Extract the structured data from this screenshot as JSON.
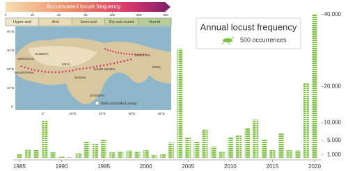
{
  "chart_data": {
    "type": "bar",
    "title": "Annual locust frequency",
    "x": [
      1985,
      1986,
      1987,
      1988,
      1989,
      1990,
      1991,
      1992,
      1993,
      1994,
      1995,
      1996,
      1997,
      1998,
      1999,
      2000,
      2001,
      2002,
      2003,
      2004,
      2005,
      2006,
      2007,
      2008,
      2009,
      2010,
      2011,
      2012,
      2013,
      2014,
      2015,
      2016,
      2017,
      2018,
      2019,
      2020
    ],
    "series": [
      {
        "name": "500 occurrences",
        "color": "#7dc242",
        "values": [
          1300,
          2600,
          2400,
          10500,
          1700,
          500,
          300,
          1500,
          4800,
          4100,
          5400,
          1700,
          2000,
          2200,
          2000,
          2300,
          1000,
          1300,
          4400,
          30500,
          5800,
          4800,
          8000,
          3300,
          2000,
          5900,
          6400,
          8500,
          10800,
          5200,
          2400,
          7000,
          2400,
          2200,
          21000,
          40000
        ]
      }
    ],
    "xlim": [
      1984.2,
      2020.8
    ],
    "xticks": [
      1985,
      1990,
      1995,
      2000,
      2005,
      2010,
      2015,
      2020
    ],
    "ylim": [
      0,
      41500
    ],
    "yticks": [
      {
        "value": 1000,
        "label": "1,000"
      },
      {
        "value": 5000,
        "label": "5,000"
      },
      {
        "value": 10000,
        "label": "10,000"
      },
      {
        "value": 20000,
        "label": "20,000"
      },
      {
        "value": 40000,
        "label": "40,000"
      }
    ],
    "y_axis_side": "right"
  },
  "inset": {
    "title": "Accumulated locust frequency",
    "colorbar_ticks": [
      0,
      10,
      20,
      50,
      100,
      200,
      500
    ],
    "climate_zones": [
      "Hyper-arid",
      "Arid",
      "Semi-arid",
      "Dry sub-humid",
      "Humid"
    ],
    "lat_labels": [
      "40°N",
      "30°N",
      "20°N",
      "10°N",
      "0°"
    ],
    "lon_labels": [
      "0°",
      "20°E",
      "40°E",
      "60°E",
      "80°E"
    ],
    "note": "Well-controlled areas",
    "countries": [
      "MOROCCO",
      "ALGERIA",
      "MAURITANIA",
      "LIBYA",
      "SUDAN",
      "SAUDI ARABIA",
      "PAKISTAN",
      "INDIA",
      "ETHIOPIA"
    ]
  }
}
